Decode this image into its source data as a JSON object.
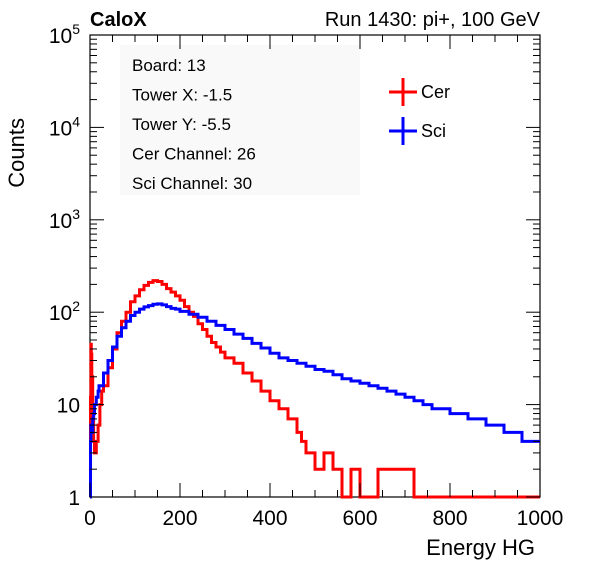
{
  "header": {
    "left": "CaloX",
    "right": "Run 1430: pi+, 100 GeV"
  },
  "info_box": [
    "Board: 13",
    "Tower X: -1.5",
    "Tower Y: -5.5",
    "Cer Channel: 26",
    "Sci Channel: 30"
  ],
  "colors": {
    "cer": "#ff0000",
    "sci": "#0000ff",
    "info_bg": "#f9f9f9"
  },
  "chart_data": {
    "type": "line",
    "title": "",
    "xlabel": "Energy HG",
    "ylabel": "Counts",
    "xlim": [
      0,
      1000
    ],
    "ylim": [
      1,
      100000
    ],
    "yscale": "log",
    "grid": false,
    "legend_position": "top-right",
    "x_ticks": [
      "0",
      "200",
      "400",
      "600",
      "800",
      "1000"
    ],
    "y_ticks": [
      {
        "value": 1,
        "base": "1",
        "exp": ""
      },
      {
        "value": 10,
        "base": "10",
        "exp": ""
      },
      {
        "value": 100,
        "base": "10",
        "exp": "2"
      },
      {
        "value": 1000,
        "base": "10",
        "exp": "3"
      },
      {
        "value": 10000,
        "base": "10",
        "exp": "4"
      },
      {
        "value": 100000,
        "base": "10",
        "exp": "5"
      }
    ],
    "series": [
      {
        "name": "Cer",
        "color": "#ff0000",
        "points": [
          [
            0,
            1
          ],
          [
            1,
            12
          ],
          [
            2,
            45
          ],
          [
            3,
            35
          ],
          [
            4,
            20
          ],
          [
            6,
            8
          ],
          [
            8,
            4
          ],
          [
            10,
            3
          ],
          [
            14,
            4
          ],
          [
            18,
            6
          ],
          [
            22,
            10
          ],
          [
            26,
            14
          ],
          [
            30,
            16
          ],
          [
            40,
            25
          ],
          [
            50,
            40
          ],
          [
            60,
            60
          ],
          [
            70,
            80
          ],
          [
            80,
            100
          ],
          [
            90,
            130
          ],
          [
            100,
            150
          ],
          [
            110,
            175
          ],
          [
            120,
            195
          ],
          [
            130,
            210
          ],
          [
            140,
            220
          ],
          [
            150,
            215
          ],
          [
            160,
            200
          ],
          [
            170,
            180
          ],
          [
            180,
            165
          ],
          [
            190,
            150
          ],
          [
            200,
            135
          ],
          [
            210,
            115
          ],
          [
            220,
            100
          ],
          [
            230,
            90
          ],
          [
            240,
            75
          ],
          [
            250,
            65
          ],
          [
            260,
            55
          ],
          [
            270,
            47
          ],
          [
            280,
            42
          ],
          [
            290,
            37
          ],
          [
            300,
            32
          ],
          [
            320,
            28
          ],
          [
            340,
            22
          ],
          [
            360,
            18
          ],
          [
            380,
            14
          ],
          [
            400,
            11
          ],
          [
            420,
            9
          ],
          [
            440,
            7
          ],
          [
            460,
            5
          ],
          [
            470,
            4
          ],
          [
            480,
            3
          ],
          [
            500,
            2
          ],
          [
            520,
            3
          ],
          [
            540,
            2
          ],
          [
            560,
            1
          ],
          [
            580,
            2
          ],
          [
            600,
            1
          ],
          [
            640,
            2
          ],
          [
            680,
            2
          ],
          [
            720,
            1
          ],
          [
            760,
            1
          ],
          [
            800,
            1
          ],
          [
            880,
            1
          ],
          [
            1000,
            1
          ]
        ]
      },
      {
        "name": "Sci",
        "color": "#0000ff",
        "points": [
          [
            0,
            1
          ],
          [
            1,
            4
          ],
          [
            2,
            6
          ],
          [
            4,
            5
          ],
          [
            6,
            7
          ],
          [
            8,
            8
          ],
          [
            10,
            10
          ],
          [
            14,
            12
          ],
          [
            18,
            14
          ],
          [
            20,
            16
          ],
          [
            30,
            22
          ],
          [
            40,
            30
          ],
          [
            50,
            42
          ],
          [
            60,
            55
          ],
          [
            70,
            68
          ],
          [
            80,
            80
          ],
          [
            90,
            92
          ],
          [
            100,
            100
          ],
          [
            110,
            108
          ],
          [
            120,
            114
          ],
          [
            130,
            118
          ],
          [
            140,
            122
          ],
          [
            150,
            123
          ],
          [
            160,
            120
          ],
          [
            170,
            115
          ],
          [
            180,
            110
          ],
          [
            190,
            108
          ],
          [
            200,
            102
          ],
          [
            220,
            95
          ],
          [
            240,
            88
          ],
          [
            260,
            80
          ],
          [
            280,
            72
          ],
          [
            300,
            65
          ],
          [
            320,
            58
          ],
          [
            340,
            52
          ],
          [
            360,
            46
          ],
          [
            380,
            41
          ],
          [
            400,
            36
          ],
          [
            420,
            32
          ],
          [
            440,
            30
          ],
          [
            460,
            28
          ],
          [
            480,
            26
          ],
          [
            500,
            24
          ],
          [
            520,
            23
          ],
          [
            540,
            21
          ],
          [
            560,
            19
          ],
          [
            580,
            18
          ],
          [
            600,
            17
          ],
          [
            620,
            16
          ],
          [
            640,
            15
          ],
          [
            660,
            14
          ],
          [
            680,
            13
          ],
          [
            700,
            12
          ],
          [
            720,
            11
          ],
          [
            740,
            10
          ],
          [
            760,
            9
          ],
          [
            780,
            9
          ],
          [
            800,
            8
          ],
          [
            820,
            8
          ],
          [
            840,
            7
          ],
          [
            860,
            7
          ],
          [
            880,
            6
          ],
          [
            900,
            6
          ],
          [
            920,
            5
          ],
          [
            940,
            5
          ],
          [
            960,
            4
          ],
          [
            980,
            4
          ],
          [
            1000,
            4
          ]
        ]
      }
    ]
  }
}
